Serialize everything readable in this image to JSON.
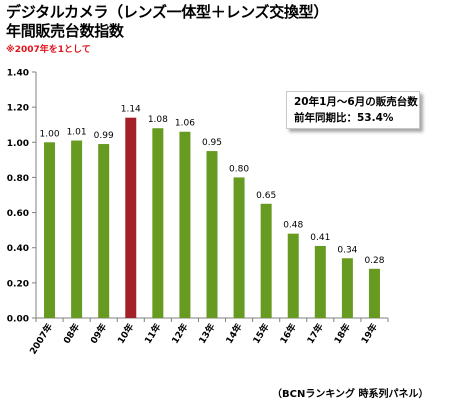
{
  "title_line1": "デジタルカメラ（レンズ一体型＋レンズ交換型）",
  "title_line2": "年間販売台数指数",
  "note": "※2007年を1として",
  "infobox": {
    "line1": "20年1月～6月の販売台数",
    "line2": "前年同期比：53.4%"
  },
  "source": "（BCNランキング 時系列パネル）",
  "colors": {
    "bar": "#669a20",
    "highlight": "#a3202a",
    "axis": "#808080"
  },
  "chart_data": {
    "type": "bar",
    "categories": [
      "2007年",
      "08年",
      "09年",
      "10年",
      "11年",
      "12年",
      "13年",
      "14年",
      "15年",
      "16年",
      "17年",
      "18年",
      "19年"
    ],
    "values": [
      1.0,
      1.01,
      0.99,
      1.14,
      1.08,
      1.06,
      0.95,
      0.8,
      0.65,
      0.48,
      0.41,
      0.34,
      0.28
    ],
    "value_labels": [
      "1.00",
      "1.01",
      "0.99",
      "1.14",
      "1.08",
      "1.06",
      "0.95",
      "0.80",
      "0.65",
      "0.48",
      "0.41",
      "0.34",
      "0.28"
    ],
    "highlight_index": 3,
    "ylim": [
      0,
      1.4
    ],
    "yticks": [
      0,
      0.2,
      0.4,
      0.6,
      0.8,
      1.0,
      1.2,
      1.4
    ],
    "ytick_labels": [
      "0.00",
      "0.20",
      "0.40",
      "0.60",
      "0.80",
      "1.00",
      "1.20",
      "1.40"
    ],
    "grid": false
  }
}
